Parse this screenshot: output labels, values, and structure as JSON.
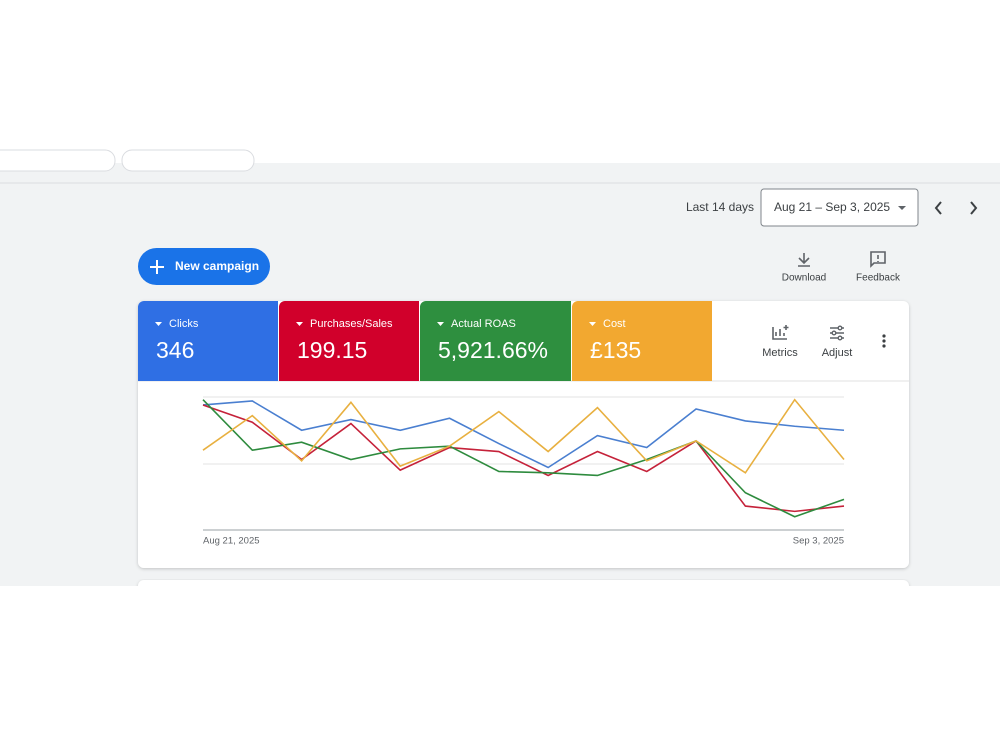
{
  "toolbar": {
    "period_label": "Last 14 days",
    "date_range": "Aug 21 – Sep 3, 2025"
  },
  "actions": {
    "new_campaign": "New campaign",
    "download": "Download",
    "feedback": "Feedback",
    "metrics": "Metrics",
    "adjust": "Adjust"
  },
  "chart_data": {
    "type": "line",
    "categories": [
      "Aug 21, 2025",
      null,
      null,
      null,
      null,
      null,
      null,
      null,
      null,
      null,
      null,
      null,
      null,
      "Sep 3, 2025"
    ],
    "ylim": [
      0,
      100
    ],
    "series": [
      {
        "name": "Clicks",
        "total": "346",
        "color": "#2f6fe4",
        "line_color": "#4a7fd0",
        "values": [
          94,
          97,
          75,
          83,
          75,
          84,
          65,
          47,
          71,
          62,
          91,
          82,
          78,
          75
        ]
      },
      {
        "name": "Purchases/Sales",
        "total": "199.15",
        "color": "#d1002b",
        "line_color": "#c5223a",
        "values": [
          94,
          81,
          53,
          80,
          45,
          62,
          59,
          41,
          59,
          44,
          67,
          18,
          14,
          18
        ]
      },
      {
        "name": "Actual ROAS",
        "total": "5,921.66%",
        "color": "#2e8f3f",
        "line_color": "#2e8b3e",
        "values": [
          98,
          60,
          66,
          53,
          61,
          63,
          44,
          43,
          41,
          53,
          67,
          28,
          10,
          23
        ]
      },
      {
        "name": "Cost",
        "total": "£135",
        "color": "#f2a830",
        "line_color": "#e8b040",
        "values": [
          60,
          86,
          52,
          96,
          48,
          63,
          89,
          59,
          92,
          52,
          67,
          43,
          98,
          53
        ]
      }
    ]
  }
}
